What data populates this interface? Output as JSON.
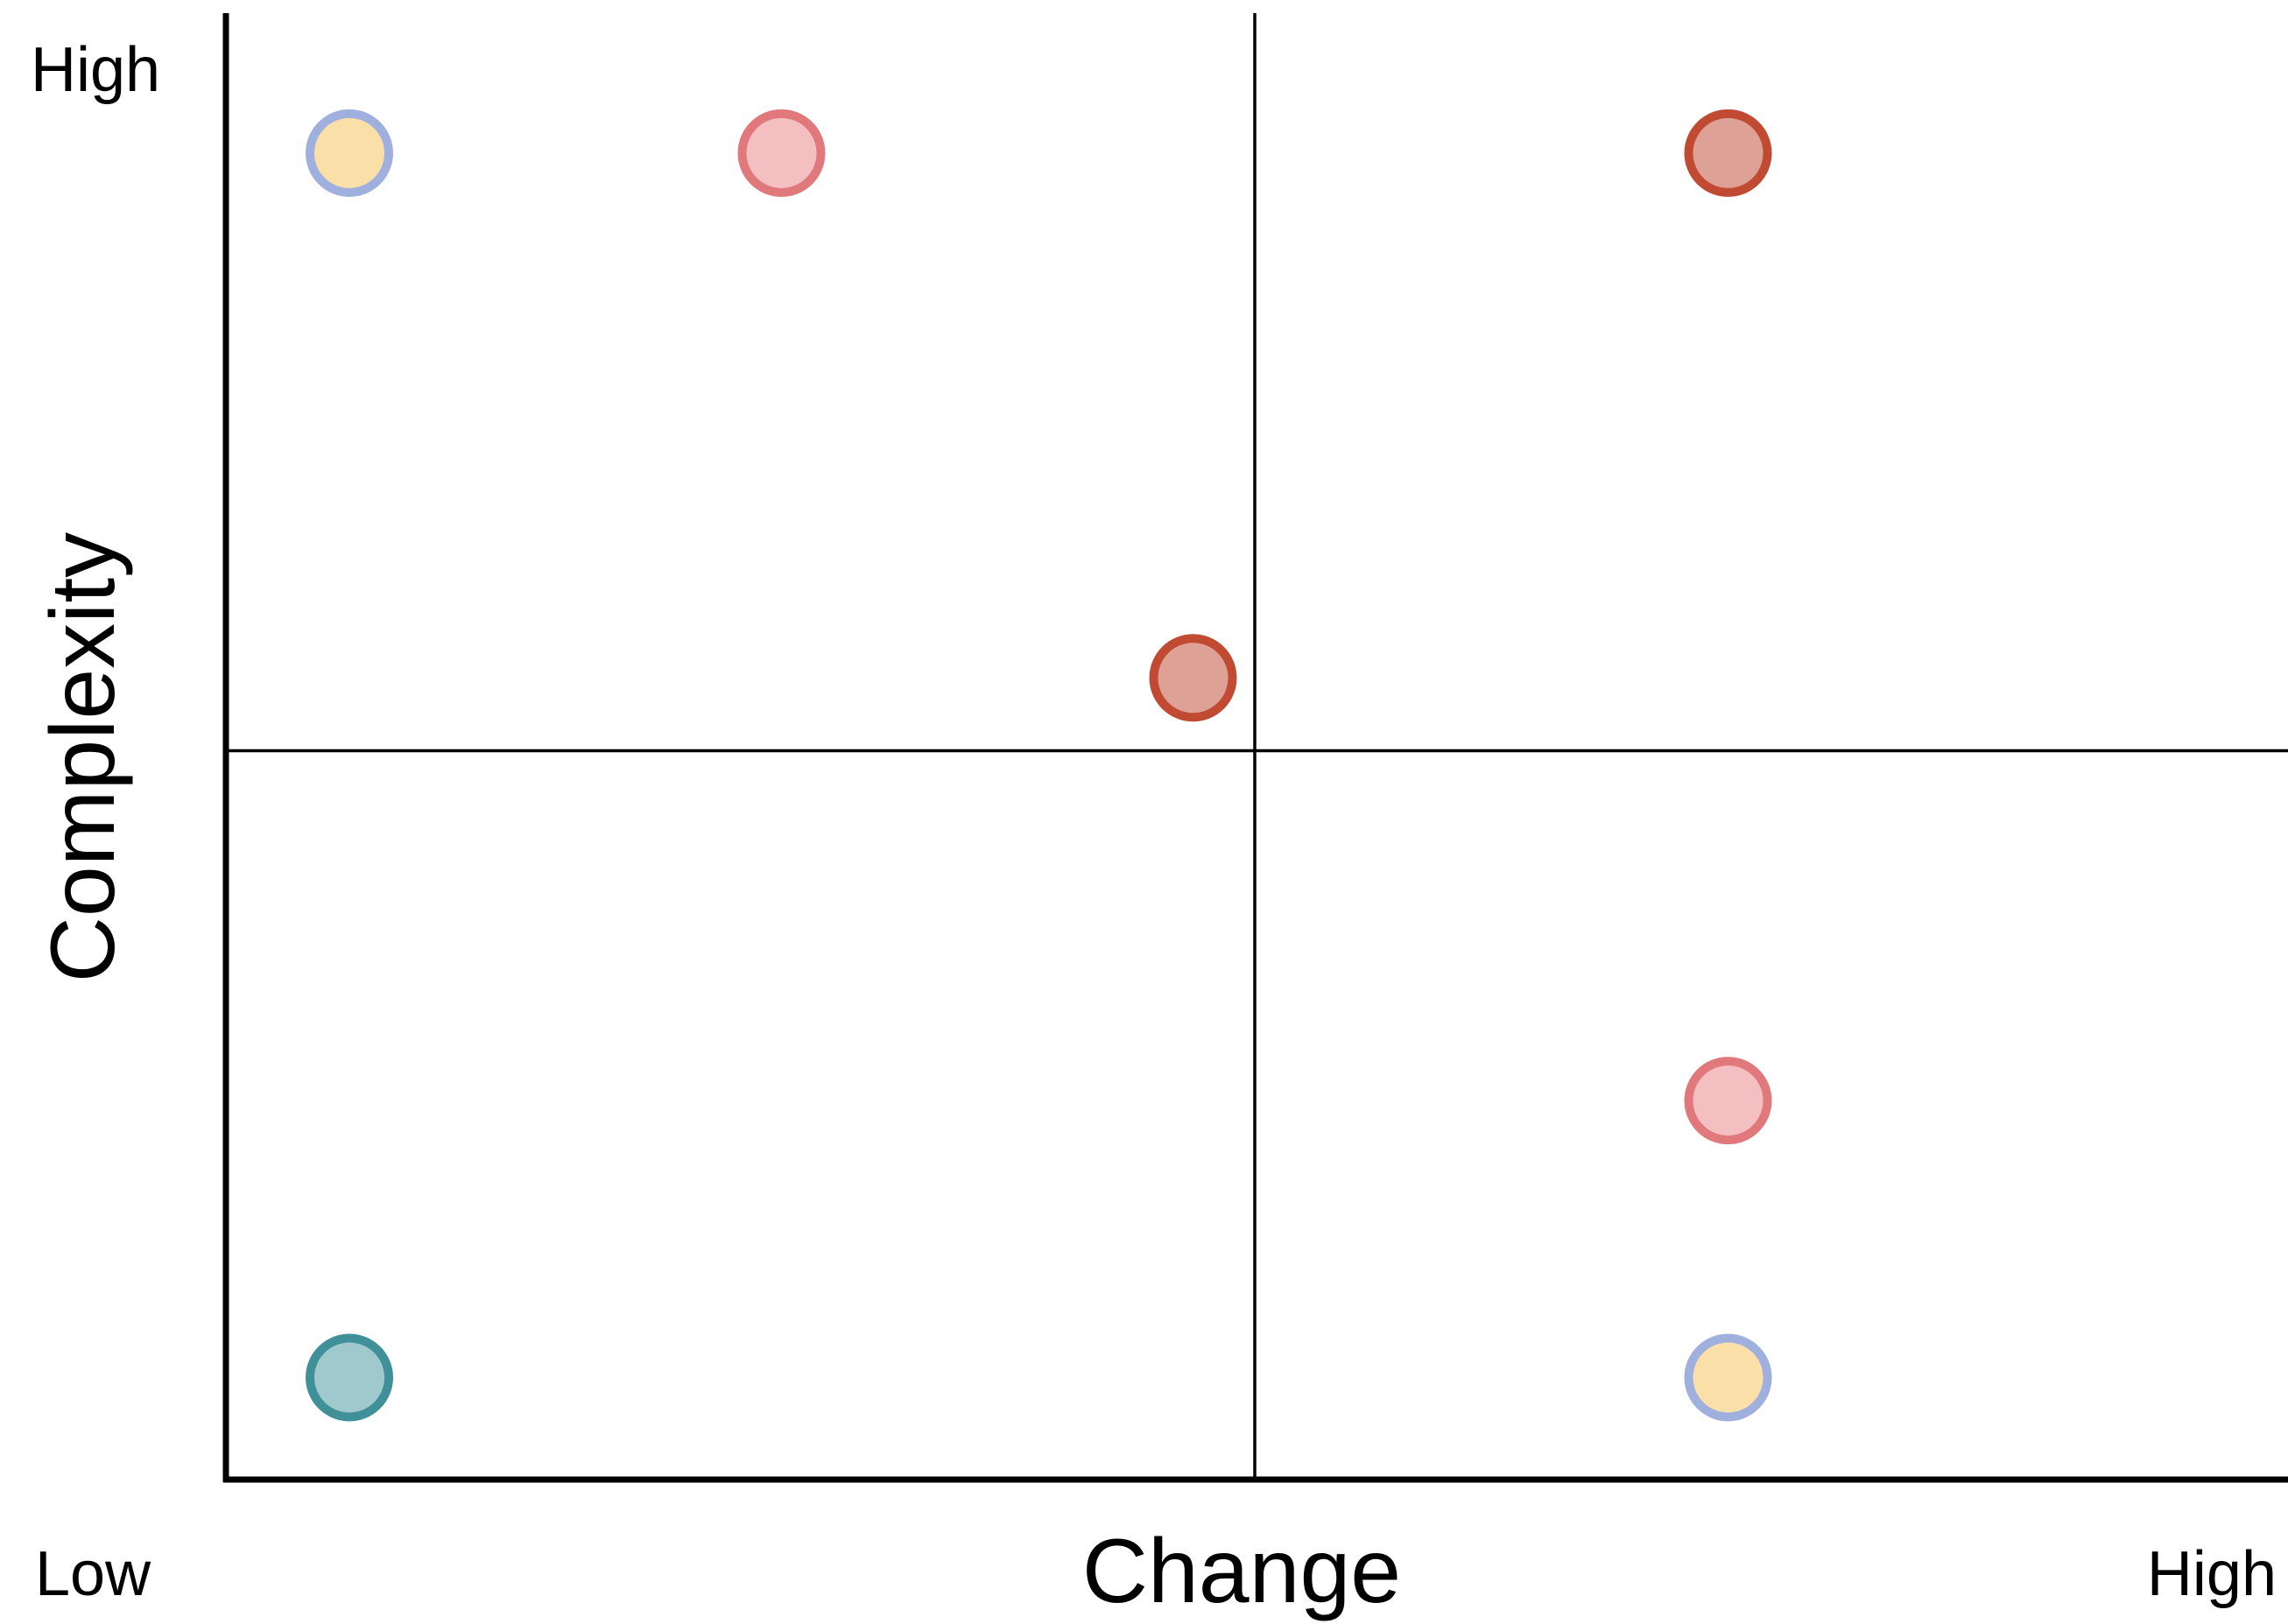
{
  "chart_data": {
    "type": "scatter",
    "xlabel": "Change",
    "ylabel": "Complexity",
    "x_low_label": "Low",
    "x_high_label": "High",
    "y_high_label": "High",
    "xlim": [
      0,
      10
    ],
    "ylim": [
      0,
      10
    ],
    "grid": false,
    "quadrant_dividers": {
      "x": 5,
      "y": 5
    },
    "points": [
      {
        "x": 0.6,
        "y": 9.1,
        "fill": "#fae0a8",
        "stroke": "#9fb0de"
      },
      {
        "x": 2.7,
        "y": 9.1,
        "fill": "#f4bfc0",
        "stroke": "#e0787c"
      },
      {
        "x": 7.3,
        "y": 9.1,
        "fill": "#dea195",
        "stroke": "#c04a32"
      },
      {
        "x": 4.7,
        "y": 5.5,
        "fill": "#dea195",
        "stroke": "#c04a32"
      },
      {
        "x": 7.3,
        "y": 2.6,
        "fill": "#f4bfc0",
        "stroke": "#e0787c"
      },
      {
        "x": 0.6,
        "y": 0.7,
        "fill": "#9fc9cc",
        "stroke": "#3f9098"
      },
      {
        "x": 7.3,
        "y": 0.7,
        "fill": "#fae0a8",
        "stroke": "#9fb0de"
      }
    ]
  }
}
